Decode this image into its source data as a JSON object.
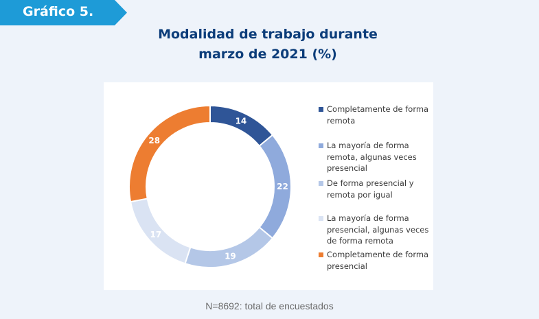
{
  "badge": {
    "label": "Gráfico 5."
  },
  "title": {
    "line1": "Modalidad de trabajo durante",
    "line2": "marzo de 2021 (%)"
  },
  "footnote": "N=8692: total de encuestados",
  "chart_data": {
    "type": "pie",
    "donut": true,
    "categories": [
      "Completamente de forma remota",
      "La mayoría de forma remota, algunas veces presencial",
      "De forma presencial y remota por igual",
      "La mayoría de forma presencial, algunas veces de forma remota",
      "Completamente de forma presencial"
    ],
    "values": [
      14,
      22,
      19,
      17,
      28
    ],
    "colors": [
      "#2f5597",
      "#8faadc",
      "#b4c7e7",
      "#dae3f3",
      "#ed7d31"
    ],
    "label_colors": [
      "#ffffff",
      "#ffffff",
      "#ffffff",
      "#ffffff",
      "#ffffff"
    ],
    "legend_placement": "right"
  },
  "legend": {
    "items": [
      {
        "label": "Completamente de forma remota"
      },
      {
        "label": "La mayoría de forma remota, algunas veces presencial"
      },
      {
        "label": "De forma presencial y remota por igual"
      },
      {
        "label": "La mayoría de forma presencial, algunas veces de forma remota"
      },
      {
        "label": "Completamente de forma presencial"
      }
    ]
  }
}
